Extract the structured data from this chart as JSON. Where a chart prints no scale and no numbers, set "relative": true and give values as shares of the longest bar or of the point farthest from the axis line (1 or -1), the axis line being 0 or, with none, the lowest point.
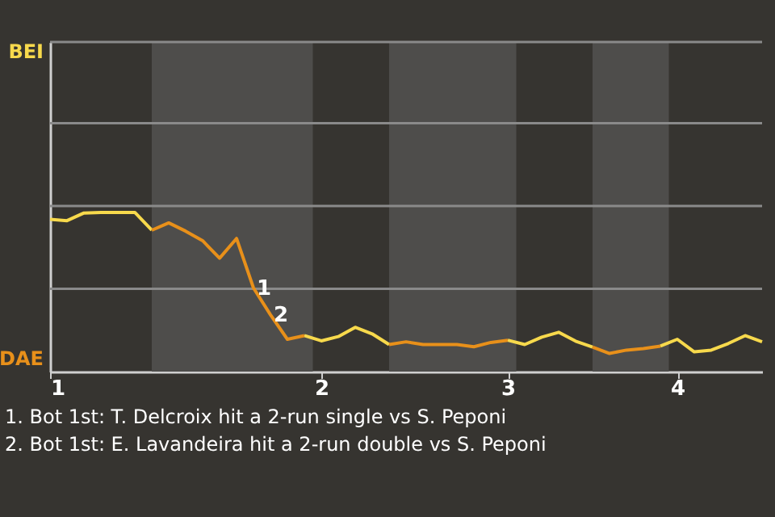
{
  "chart_data": {
    "type": "line",
    "relative": true,
    "categories": [
      "1",
      null,
      null,
      null,
      null,
      null,
      null,
      null,
      null,
      null,
      null,
      null,
      null,
      null,
      null,
      null,
      "2",
      null,
      null,
      null,
      null,
      null,
      null,
      null,
      null,
      null,
      null,
      "3",
      null,
      null,
      null,
      null,
      null,
      null,
      null,
      null,
      null,
      "4",
      null,
      null,
      null,
      null,
      null
    ],
    "series": [
      {
        "name": "BEI",
        "color": "#f7d94c",
        "values": [
          0.956,
          0.948,
          0.996,
          1,
          1,
          1,
          0.888,
          null,
          null,
          null,
          null,
          null,
          null,
          null,
          null,
          0.226,
          0.193,
          0.22,
          0.278,
          0.237,
          0.17,
          null,
          null,
          null,
          null,
          null,
          null,
          0.197,
          0.17,
          0.216,
          0.247,
          0.191,
          0.154,
          null,
          null,
          null,
          0.16,
          0.203,
          0.124,
          0.135,
          0.176,
          0.226,
          0.187
        ]
      },
      {
        "name": "DAE",
        "color": "#e8901a",
        "values": [
          null,
          null,
          null,
          null,
          null,
          null,
          0.888,
          0.934,
          0.882,
          0.822,
          0.712,
          0.836,
          0.525,
          0.357,
          0.203,
          0.226,
          null,
          null,
          null,
          null,
          0.17,
          0.187,
          0.17,
          0.17,
          0.17,
          0.156,
          0.183,
          0.197,
          null,
          null,
          null,
          null,
          0.154,
          0.114,
          0.135,
          0.145,
          0.16,
          null,
          null,
          null,
          null,
          null,
          null
        ]
      }
    ],
    "ref_lines": [
      {
        "axis": "y",
        "value": 0.52,
        "color": "#8a8a8a"
      },
      {
        "axis": "y",
        "value": 1.04,
        "color": "#8a8a8a"
      },
      {
        "axis": "y",
        "value": 1.56,
        "color": "#8a8a8a"
      },
      {
        "axis": "y",
        "value": 2.07,
        "color": "#8a8a8a"
      }
    ],
    "annotations": [
      {
        "text": "1",
        "y": 0.525
      },
      {
        "text": "2",
        "y": 0.357
      },
      "1. Bot 1st: T. Delcroix hit a 2-run single vs S. Peponi",
      "2. Bot 1st: E. Lavandeira hit a 2-run double vs S. Peponi"
    ]
  }
}
